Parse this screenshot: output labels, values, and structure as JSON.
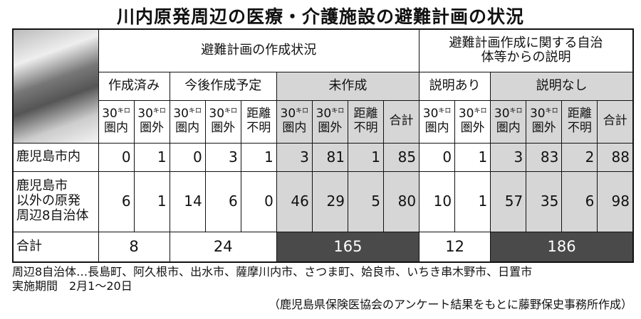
{
  "title": "川内原発周辺の医療・介護施設の避難計画の状況",
  "header": {
    "group1": "避難計画の作成状況",
    "group2": "避難計画作成に関する自治体等からの説明",
    "sub": [
      "作成済み",
      "今後作成予定",
      "未作成",
      "説明あり",
      "説明なし"
    ],
    "in30": "30キロ圏内",
    "out30": "30キロ圏外",
    "unknown": "距離不明",
    "total": "合計"
  },
  "rows": [
    {
      "label": "鹿児島市内",
      "values": [
        0,
        1,
        0,
        3,
        1,
        3,
        81,
        1,
        85,
        0,
        1,
        3,
        83,
        2,
        88
      ]
    },
    {
      "label": "鹿児島市以外の原発周辺8自治体",
      "values": [
        6,
        1,
        14,
        6,
        0,
        46,
        29,
        5,
        80,
        10,
        1,
        57,
        35,
        6,
        98
      ]
    }
  ],
  "totals": {
    "label": "合計",
    "values": [
      8,
      24,
      165,
      12,
      186
    ]
  },
  "notes": [
    "周辺8自治体…長島町、阿久根市、出水市、薩摩川内市、さつま町、姶良市、いちき串木野市、日置市",
    "実施期間　2月1～20日"
  ],
  "source": "（鹿児島県保険医協会のアンケート結果をもとに藤野保史事務所作成）"
}
